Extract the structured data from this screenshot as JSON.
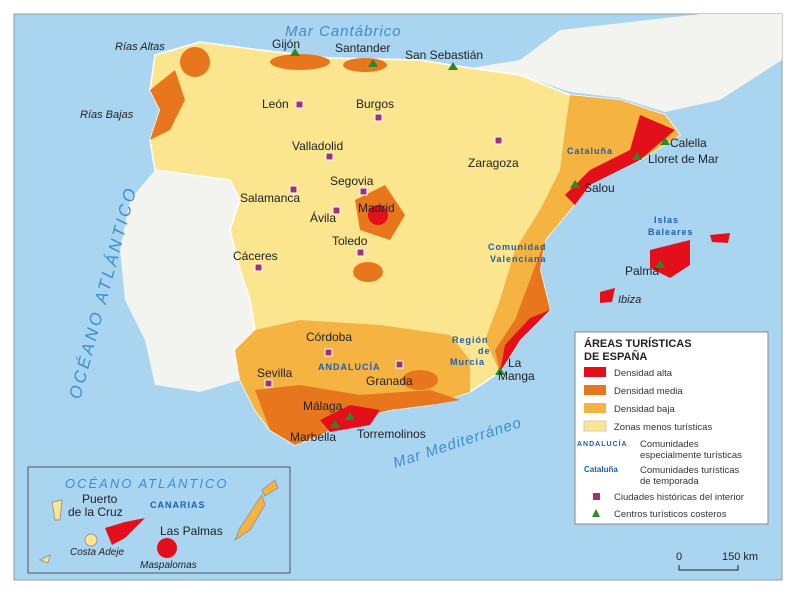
{
  "legend": {
    "title_line1": "ÁREAS TURÍSTICAS",
    "title_line2": "DE ESPAÑA",
    "items": [
      {
        "label": "Densidad alta",
        "color": "#e3101c"
      },
      {
        "label": "Densidad media",
        "color": "#e8761c"
      },
      {
        "label": "Densidad baja",
        "color": "#f5b342"
      },
      {
        "label": "Zonas menos turísticas",
        "color": "#fbe58e"
      }
    ],
    "andalucia_sample": "ANDALUCÍA",
    "andalucia_desc1": "Comunidades",
    "andalucia_desc2": "especialmente turísticas",
    "cataluna_sample": "Cataluña",
    "cataluna_desc1": "Comunidades turísticas",
    "cataluna_desc2": "de temporada",
    "historic": "Ciudades históricas del interior",
    "coastal": "Centros turísticos costeros"
  },
  "seas": {
    "cantabrico": "Mar Cantábrico",
    "mediterraneo": "Mar Mediterráneo",
    "atlantico": "OCÉANO ATLÁNTICO",
    "atlantico_inset": "OCÉANO ATLÁNTICO"
  },
  "coast_labels": {
    "rias_altas": "Rías Altas",
    "rias_bajas": "Rías Bajas"
  },
  "cities": {
    "gijon": "Gijón",
    "santander": "Santander",
    "san_sebastian": "San Sebastián",
    "leon": "León",
    "burgos": "Burgos",
    "valladolid": "Valladolid",
    "zaragoza": "Zaragoza",
    "segovia": "Segovia",
    "salamanca": "Salamanca",
    "avila": "Ávila",
    "madrid": "Madrid",
    "toledo": "Toledo",
    "caceres": "Cáceres",
    "calella": "Calella",
    "lloret": "Lloret de Mar",
    "salou": "Salou",
    "palma": "Palma",
    "ibiza": "Ibiza",
    "la_manga1": "La",
    "la_manga2": "Manga",
    "cordoba": "Córdoba",
    "sevilla": "Sevilla",
    "granada": "Granada",
    "malaga": "Málaga",
    "marbella": "Marbella",
    "torremolinos": "Torremolinos",
    "puerto1": "Puerto",
    "puerto2": "de la Cruz",
    "las_palmas": "Las Palmas",
    "costa_adeje": "Costa Adeje",
    "maspalomas": "Maspalomas"
  },
  "regions": {
    "cataluna": "Cataluña",
    "baleares1": "Islas",
    "baleares2": "Baleares",
    "valenciana1": "Comunidad",
    "valenciana2": "Valenciana",
    "murcia1": "Región",
    "murcia2": "de",
    "murcia3": "Murcia",
    "andalucia": "ANDALUCÍA",
    "canarias": "CANARIAS"
  },
  "scale": {
    "zero": "0",
    "max": "150 km"
  }
}
